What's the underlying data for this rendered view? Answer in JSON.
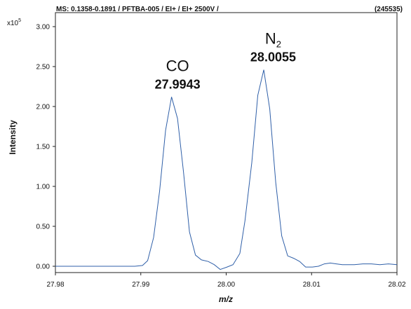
{
  "header": {
    "scan_label": "MS: 0.1358-0.1891 / PFTBA-005 / EI+ / EI+ 2500V /",
    "count_label": "(245535)",
    "multiplier_base": "x10",
    "multiplier_exp": "5"
  },
  "chart_data": {
    "type": "line",
    "xlabel": "m/z",
    "ylabel": "Intensity",
    "xlim": [
      27.98,
      28.02
    ],
    "ylim": [
      -0.06,
      3.05
    ],
    "x_ticks": [
      27.98,
      27.99,
      28.0,
      28.01,
      28.02
    ],
    "x_tick_labels": [
      "27.98",
      "27.99",
      "28.00",
      "28.01",
      "28.02"
    ],
    "y_ticks": [
      0,
      0.5,
      1.0,
      1.5,
      2.0,
      2.5,
      3.0
    ],
    "y_tick_labels": [
      "0.00",
      "0.50",
      "1.00",
      "1.50",
      "2.00",
      "2.50",
      "3.00"
    ],
    "grid": false,
    "line_color": "#2f5fa8",
    "series": [
      {
        "x": [
          27.98,
          27.985,
          27.9893,
          27.9902,
          27.9908,
          27.9915,
          27.9922,
          27.9929,
          27.9936,
          27.9943,
          27.995,
          27.9957,
          27.9964,
          27.9971,
          27.9979,
          27.9986,
          27.9993,
          28.0001,
          28.0008,
          28.0016,
          28.0022,
          28.003,
          28.0037,
          28.0044,
          28.0051,
          28.0058,
          28.0065,
          28.0072,
          28.0079,
          28.0086,
          28.0093,
          28.0101,
          28.0108,
          28.0115,
          28.0122,
          28.0129,
          28.0136,
          28.0143,
          28.015,
          28.016,
          28.017,
          28.018,
          28.019,
          28.02
        ],
        "y": [
          0.0,
          0.0,
          0.0,
          0.01,
          0.07,
          0.36,
          0.94,
          1.7,
          2.12,
          1.85,
          1.18,
          0.43,
          0.14,
          0.08,
          0.06,
          0.02,
          -0.04,
          -0.01,
          0.02,
          0.16,
          0.57,
          1.3,
          2.14,
          2.46,
          1.97,
          1.05,
          0.38,
          0.13,
          0.1,
          0.06,
          -0.01,
          -0.01,
          0.0,
          0.03,
          0.04,
          0.03,
          0.02,
          0.02,
          0.02,
          0.03,
          0.03,
          0.02,
          0.03,
          0.02
        ]
      }
    ],
    "annotations": [
      {
        "name": "CO",
        "value": "27.9943",
        "x": 27.9943,
        "y": 2.12
      },
      {
        "name": "N",
        "sub": "2",
        "value": "28.0055",
        "x": 28.0055,
        "y": 2.46
      }
    ]
  }
}
